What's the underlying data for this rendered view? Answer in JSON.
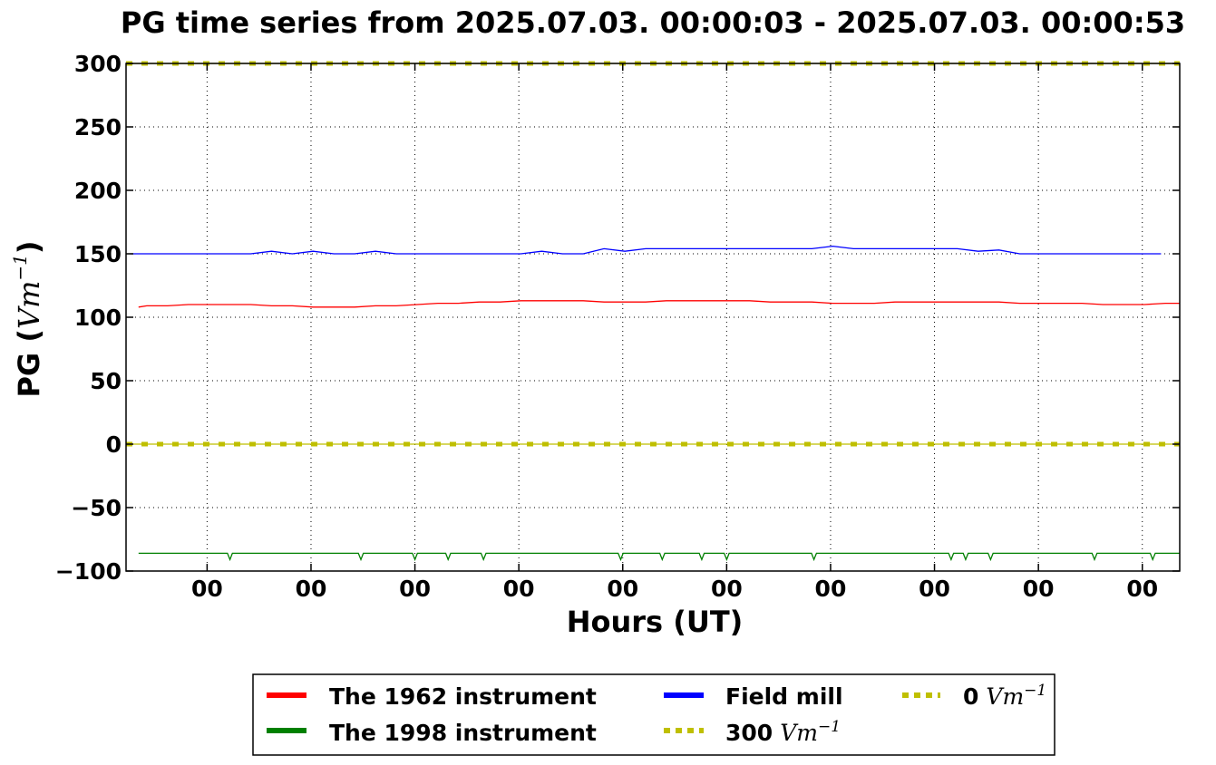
{
  "chart_data": {
    "type": "line",
    "title": "PG time series from 2025.07.03. 00:00:03 - 2025.07.03. 00:00:53",
    "xlabel": "Hours (UT)",
    "ylabel_prefix": "PG (",
    "ylabel_unit": "Vm",
    "ylabel_exp": "−1",
    "ylabel_suffix": ")",
    "ylim": [
      -100,
      300
    ],
    "yticks": [
      300,
      250,
      200,
      150,
      100,
      50,
      0,
      -50,
      -100
    ],
    "ytick_labels": [
      "300",
      "250",
      "200",
      "150",
      "100",
      "50",
      "0",
      "−50",
      "−100"
    ],
    "xlim": [
      0,
      50.7
    ],
    "xticks": [
      3.9,
      8.9,
      13.9,
      18.9,
      23.9,
      28.9,
      33.9,
      38.9,
      43.9,
      48.9
    ],
    "xtick_labels": [
      "00",
      "00",
      "00",
      "00",
      "00",
      "00",
      "00",
      "00",
      "00",
      "00"
    ],
    "grid": true,
    "legend_position": "bottom-center",
    "series": [
      {
        "name": "The 1962 instrument",
        "color": "#ff0000",
        "style": "solid",
        "x": [
          0.6,
          1.0,
          2.0,
          3.0,
          4.0,
          5.0,
          6.0,
          7.0,
          8.0,
          9.0,
          10.0,
          11.0,
          12.0,
          13.0,
          14.0,
          15.0,
          16.0,
          17.0,
          18.0,
          19.0,
          20.0,
          21.0,
          22.0,
          23.0,
          24.0,
          25.0,
          26.0,
          27.0,
          28.0,
          29.0,
          30.0,
          31.0,
          32.0,
          33.0,
          34.0,
          35.0,
          36.0,
          37.0,
          38.0,
          39.0,
          40.0,
          41.0,
          42.0,
          43.0,
          44.0,
          45.0,
          46.0,
          47.0,
          48.0,
          49.0,
          50.0,
          50.7
        ],
        "y": [
          108,
          109,
          109,
          110,
          110,
          110,
          110,
          109,
          109,
          108,
          108,
          108,
          109,
          109,
          110,
          111,
          111,
          112,
          112,
          113,
          113,
          113,
          113,
          112,
          112,
          112,
          113,
          113,
          113,
          113,
          113,
          112,
          112,
          112,
          111,
          111,
          111,
          112,
          112,
          112,
          112,
          112,
          112,
          111,
          111,
          111,
          111,
          110,
          110,
          110,
          111,
          111
        ]
      },
      {
        "name": "The 1998 instrument",
        "color": "#008000",
        "style": "solid",
        "baseline": -86,
        "x_range": [
          0.6,
          50.7
        ],
        "dips": [
          {
            "x": 5.0,
            "y": -91
          },
          {
            "x": 11.3,
            "y": -91
          },
          {
            "x": 13.9,
            "y": -91
          },
          {
            "x": 15.5,
            "y": -91
          },
          {
            "x": 17.2,
            "y": -91
          },
          {
            "x": 23.8,
            "y": -91
          },
          {
            "x": 25.8,
            "y": -91
          },
          {
            "x": 27.7,
            "y": -91
          },
          {
            "x": 28.9,
            "y": -91
          },
          {
            "x": 33.1,
            "y": -91
          },
          {
            "x": 39.7,
            "y": -91
          },
          {
            "x": 40.4,
            "y": -91
          },
          {
            "x": 41.6,
            "y": -91
          },
          {
            "x": 46.6,
            "y": -91
          },
          {
            "x": 49.4,
            "y": -91
          }
        ]
      },
      {
        "name": "Field mill",
        "color": "#0000ff",
        "style": "solid",
        "x": [
          0.2,
          6.0,
          7.0,
          8.0,
          9.0,
          10.0,
          11.0,
          12.0,
          13.0,
          19.0,
          20.0,
          21.0,
          22.0,
          23.0,
          24.0,
          25.0,
          26.0,
          33.0,
          34.0,
          35.0,
          40.0,
          41.0,
          42.0,
          43.0,
          49.8
        ],
        "y": [
          150,
          150,
          152,
          150,
          152,
          150,
          150,
          152,
          150,
          150,
          152,
          150,
          150,
          154,
          152,
          154,
          154,
          154,
          156,
          154,
          154,
          152,
          153,
          150,
          150
        ]
      },
      {
        "name": "300 Vm−1",
        "legend_value": "300",
        "color": "#bfbf00",
        "style": "dotted",
        "y_const": 300
      },
      {
        "name": "0 Vm−1",
        "legend_value": "0",
        "color": "#bfbf00",
        "style": "dotted",
        "y_const": 0
      }
    ],
    "legend": {
      "unit": "Vm",
      "exp": "−1",
      "items": [
        {
          "label": "The 1962 instrument",
          "color": "#ff0000",
          "style": "solid"
        },
        {
          "label": "The 1998 instrument",
          "color": "#008000",
          "style": "solid"
        },
        {
          "label": "Field mill",
          "color": "#0000ff",
          "style": "solid"
        },
        {
          "label_value": "300",
          "color": "#bfbf00",
          "style": "dotted"
        },
        {
          "label_value": "0",
          "color": "#bfbf00",
          "style": "dotted"
        }
      ]
    }
  }
}
